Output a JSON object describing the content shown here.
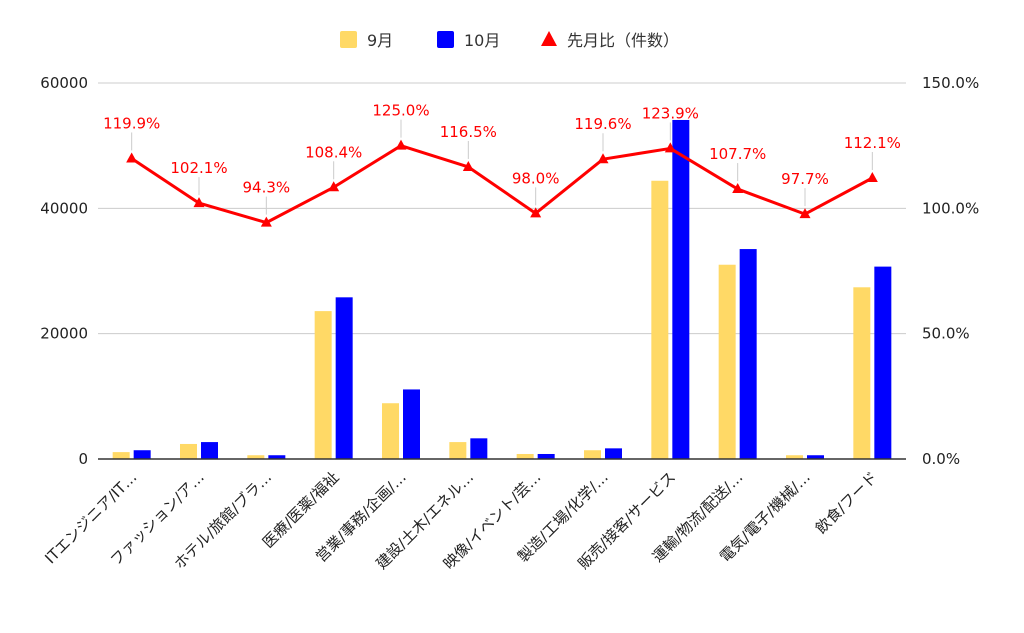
{
  "chart_data": {
    "type": "bar",
    "categories": [
      "ITエンジニア/IT…",
      "ファッション/ア…",
      "ホテル/旅館/ブラ…",
      "医療/医薬/福祉",
      "営業/事務/企画/…",
      "建設/土木/エネル…",
      "映像/イベント/芸…",
      "製造/工場/化学/…",
      "販売/接客/サービス",
      "運輸/物流/配送/…",
      "電気/電子/機械/…",
      "飲食/フード"
    ],
    "series": [
      {
        "name": "9月",
        "axis": "left",
        "color": "#ffd966",
        "values": [
          1100,
          2400,
          600,
          23600,
          8900,
          2700,
          800,
          1400,
          44400,
          31000,
          600,
          27400
        ]
      },
      {
        "name": "10月",
        "axis": "left",
        "color": "#0000ff",
        "values": [
          1400,
          2700,
          600,
          25800,
          11100,
          3300,
          800,
          1700,
          54100,
          33500,
          600,
          30700
        ]
      },
      {
        "name": "先月比（件数）",
        "type": "line",
        "axis": "right",
        "color": "#ff0000",
        "values": [
          119.9,
          102.1,
          94.3,
          108.4,
          125.0,
          116.5,
          98.0,
          119.6,
          123.9,
          107.7,
          97.7,
          112.1
        ],
        "labels": [
          "119.9%",
          "102.1%",
          "94.3%",
          "108.4%",
          "125.0%",
          "116.5%",
          "98.0%",
          "119.6%",
          "123.9%",
          "107.7%",
          "97.7%",
          "112.1%"
        ]
      }
    ],
    "y_left": {
      "ylim": [
        0,
        60000
      ],
      "ticks": [
        "0",
        "20000",
        "40000",
        "60000"
      ]
    },
    "y_right": {
      "ylim": [
        0,
        150
      ],
      "ticks": [
        "0.0%",
        "50.0%",
        "100.0%",
        "150.0%"
      ]
    },
    "legend": {
      "position": "top"
    },
    "grid": true
  }
}
